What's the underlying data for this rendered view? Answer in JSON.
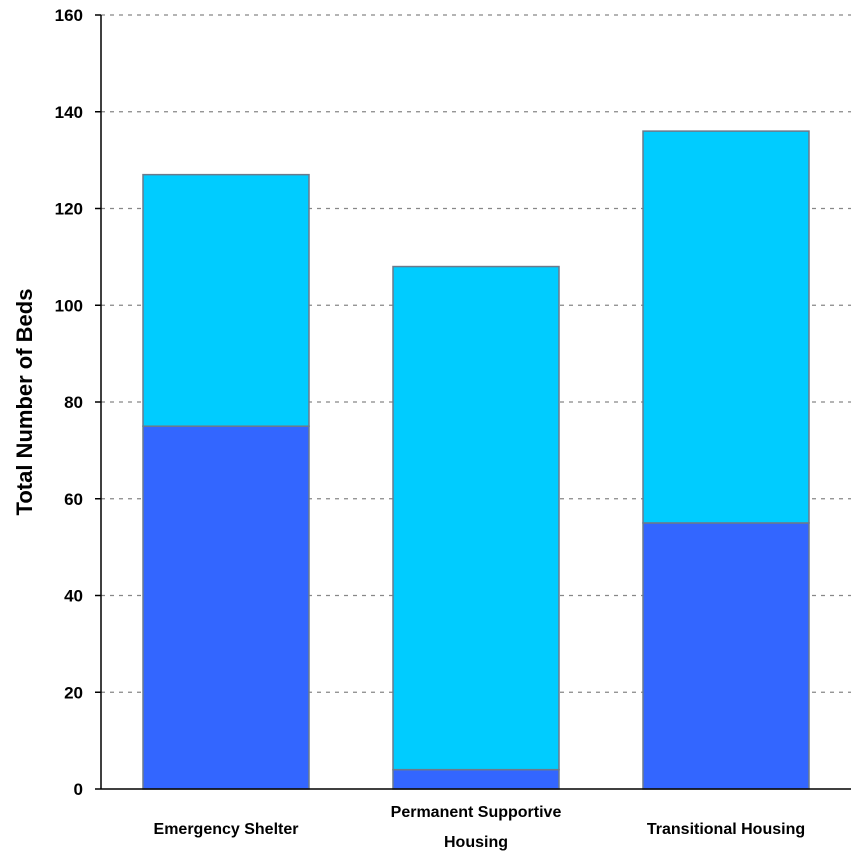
{
  "chart_data": {
    "type": "bar",
    "stacked": true,
    "title": "",
    "xlabel": "",
    "ylabel": "Total Number of Beds",
    "ylim": [
      0,
      160
    ],
    "yticks": [
      0,
      20,
      40,
      60,
      80,
      100,
      120,
      140,
      160
    ],
    "grid": true,
    "categories": [
      [
        "Emergency Shelter"
      ],
      [
        "Permanent Supportive",
        "Housing"
      ],
      [
        "Transitional Housing"
      ]
    ],
    "series": [
      {
        "values": [
          75,
          4,
          55
        ],
        "color": "#3366ff"
      },
      {
        "values": [
          52,
          104,
          81
        ],
        "color": "#00ccff"
      }
    ]
  }
}
